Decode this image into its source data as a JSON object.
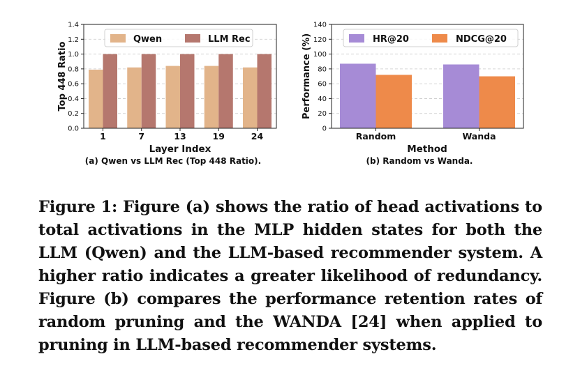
{
  "chart_data": [
    {
      "type": "bar",
      "categories": [
        "1",
        "7",
        "13",
        "19",
        "24"
      ],
      "series": [
        {
          "name": "Qwen",
          "values": [
            0.79,
            0.82,
            0.84,
            0.84,
            0.82
          ],
          "color": "#e2b48a"
        },
        {
          "name": "LLM Rec",
          "values": [
            1.0,
            1.0,
            1.0,
            1.0,
            1.0
          ],
          "color": "#b5776e"
        }
      ],
      "xlabel": "Layer Index",
      "ylabel": "Top 448 Ratio",
      "ylim": [
        0,
        1.4
      ],
      "yticks": [
        "0.0",
        "0.2",
        "0.4",
        "0.6",
        "0.8",
        "1.0",
        "1.2",
        "1.4"
      ],
      "grid": true,
      "legend": "top",
      "subcaption": "(a) Qwen vs LLM Rec (Top 448 Ratio)."
    },
    {
      "type": "bar",
      "categories": [
        "Random",
        "Wanda"
      ],
      "series": [
        {
          "name": "HR@20",
          "values": [
            87,
            86
          ],
          "color": "#a68bd6"
        },
        {
          "name": "NDCG@20",
          "values": [
            72,
            70
          ],
          "color": "#ee8a4a"
        }
      ],
      "xlabel": "Method",
      "ylabel": "Performance (%)",
      "ylim": [
        0,
        140
      ],
      "yticks": [
        "0",
        "20",
        "40",
        "60",
        "80",
        "100",
        "120",
        "140"
      ],
      "grid": true,
      "legend": "top",
      "subcaption": "(b) Random vs Wanda."
    }
  ],
  "caption": "Figure 1: Figure (a) shows the ratio of head activations to total activations in the MLP hidden states for both the LLM (Qwen) and the LLM-based recommender system. A higher ratio indicates a greater likelihood of redundancy. Figure (b) compares the performance retention rates of random pruning and the WANDA [24] when applied to pruning in LLM-based recommender systems."
}
